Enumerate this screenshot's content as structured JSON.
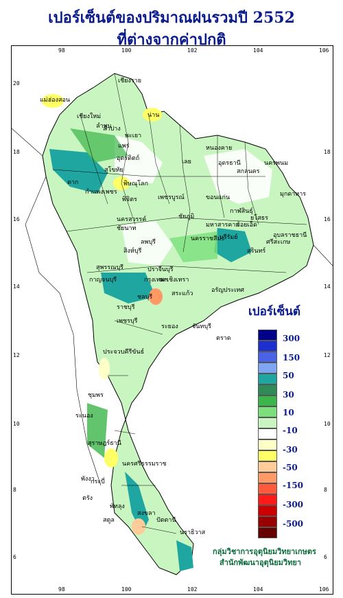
{
  "title_line1": "เปอร์เซ็นต์ของปริมาณฝนรวมปี  2552",
  "title_line2": "ที่ต่างจากค่าปกติ",
  "x_ticks": [
    "98",
    "100",
    "102",
    "104",
    "106"
  ],
  "y_ticks": [
    "20",
    "18",
    "16",
    "14",
    "12",
    "10",
    "8",
    "6"
  ],
  "legend": {
    "title": "เปอร์เซ็นต์",
    "swatches": [
      "#00008b",
      "#1e2fd0",
      "#4a63e6",
      "#7fa6f2",
      "#1fa6a0",
      "#2e8b57",
      "#3cb54a",
      "#7be07b",
      "#c8f5c0",
      "#ffffff",
      "#ffffc8",
      "#ffff66",
      "#ffcc99",
      "#ff9966",
      "#ff5a3c",
      "#ff1a1a",
      "#cc0000",
      "#990000",
      "#660000"
    ],
    "labels": [
      "300",
      "150",
      "50",
      "30",
      "10",
      "-10",
      "-30",
      "-50",
      "-150",
      "-300",
      "-500"
    ]
  },
  "provinces": [
    "เชียงราย",
    "แม่ฮ่องสอน",
    "เชียงใหม่",
    "ลำพูน",
    "ลำปาง",
    "พะเยา",
    "น่าน",
    "แพร่",
    "อุตรดิตถ์",
    "ตาก",
    "สุโขทัย",
    "พิษณุโลก",
    "กำแพงเพชร",
    "พิจิตร",
    "เพชรบูรณ์",
    "นครสวรรค์",
    "ชัยนาท",
    "ลพบุรี",
    "สิงห์บุรี",
    "สุพรรณบุรี",
    "กาญจนบุรี",
    "ราชบุรี",
    "เพชรบุรี",
    "ประจวบคีรีขันธ์",
    "ชุมพร",
    "ระนอง",
    "สุราษฎร์ธานี",
    "นครศรีธรรมราช",
    "พังงา",
    "กระบี่",
    "ตรัง",
    "สตูล",
    "พัทลุง",
    "สงขลา",
    "ปัตตานี",
    "นราธิวาส",
    "หนองคาย",
    "อุดรธานี",
    "สกลนคร",
    "นครพนม",
    "มุกดาหาร",
    "เลย",
    "ขอนแก่น",
    "ชัยภูมิ",
    "นครราชสีมา",
    "บุรีรัมย์",
    "สุรินทร์",
    "ศรีสะเกษ",
    "อุบลราชธานี",
    "ยโสธร",
    "กาฬสินธุ์",
    "ร้อยเอ็ด",
    "มหาสารคาม",
    "ปราจีนบุรี",
    "ฉะเชิงเทรา",
    "ชลบุรี",
    "ระยอง",
    "จันทบุรี",
    "ตราด",
    "อรัญประเทศ",
    "กรุงเทพฯ",
    "สระแก้ว"
  ],
  "credit_line1": "กลุ่มวิชาการอุตุนิยมวิทยาเกษตร",
  "credit_line2": "สำนักพัฒนาอุตุนิยมวิทยา"
}
